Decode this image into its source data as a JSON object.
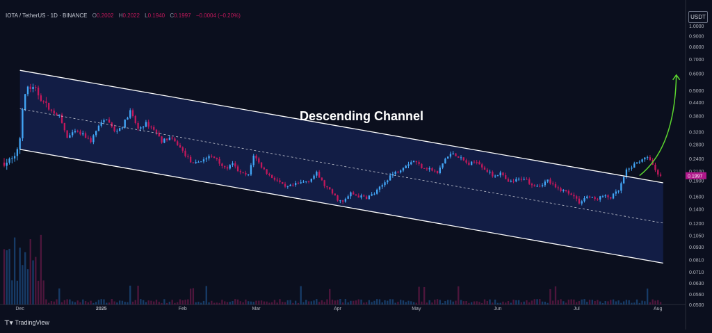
{
  "header": {
    "symbol": "IOTA / TetherUS · 1D · BINANCE",
    "open_label": "O",
    "open": "0.2002",
    "high_label": "H",
    "high": "0.2022",
    "low_label": "L",
    "low": "0.1940",
    "close_label": "C",
    "close": "0.1997",
    "change": "−0.0004 (−0.20%)"
  },
  "currency_button": "USDT",
  "footer": {
    "logo": "TradingView"
  },
  "colors": {
    "background": "#0b0f1e",
    "up": "#42a5f5",
    "down": "#c2185b",
    "channel": "#ffffff",
    "arrow": "#5bd62f",
    "price_tag": "#b0178a"
  },
  "chart_data": {
    "type": "candlestick",
    "annotation": "Descending Channel",
    "scale": "log",
    "y_ticks": [
      0.05,
      0.056,
      0.063,
      0.071,
      0.081,
      0.093,
      0.105,
      0.12,
      0.14,
      0.16,
      0.19,
      0.21,
      0.24,
      0.28,
      0.32,
      0.38,
      0.44,
      0.5,
      0.6,
      0.7,
      0.8,
      0.9,
      1.0
    ],
    "y_tick_labels": [
      "0.0500",
      "0.0560",
      "0.0630",
      "0.0710",
      "0.0810",
      "0.0930",
      "0.1050",
      "0.1200",
      "0.1400",
      "0.1600",
      "0.1900",
      "0.2100",
      "0.2400",
      "0.2800",
      "0.3200",
      "0.3800",
      "0.4400",
      "0.5000",
      "0.6000",
      "0.7000",
      "0.8000",
      "0.9000",
      "1.0000"
    ],
    "ylim": [
      0.05,
      1.04
    ],
    "x_ticks": [
      "Dec",
      "2025",
      "Feb",
      "Mar",
      "Apr",
      "May",
      "Jun",
      "Jul",
      "Aug"
    ],
    "x_tick_days": [
      0,
      31,
      62,
      90,
      121,
      151,
      182,
      212,
      243
    ],
    "x_range_days": [
      -6,
      253
    ],
    "last_price": 0.1997,
    "last_price_label": "0.1997",
    "channel": {
      "upper": [
        [
          0,
          0.62
        ],
        [
          245,
          0.185
        ]
      ],
      "middle": [
        [
          0,
          0.41
        ],
        [
          245,
          0.12
        ]
      ],
      "lower": [
        [
          0,
          0.265
        ],
        [
          245,
          0.078
        ]
      ]
    },
    "projection_arrow": [
      [
        236,
        0.2
      ],
      [
        250,
        0.59
      ]
    ],
    "anchors": [
      [
        -6,
        0.23
      ],
      [
        -2,
        0.24
      ],
      [
        0,
        0.3
      ],
      [
        1,
        0.42
      ],
      [
        3,
        0.52
      ],
      [
        6,
        0.5
      ],
      [
        9,
        0.44
      ],
      [
        12,
        0.4
      ],
      [
        15,
        0.38
      ],
      [
        18,
        0.3
      ],
      [
        21,
        0.32
      ],
      [
        24,
        0.31
      ],
      [
        27,
        0.29
      ],
      [
        30,
        0.34
      ],
      [
        33,
        0.37
      ],
      [
        36,
        0.32
      ],
      [
        39,
        0.34
      ],
      [
        42,
        0.4
      ],
      [
        45,
        0.33
      ],
      [
        48,
        0.35
      ],
      [
        51,
        0.33
      ],
      [
        54,
        0.29
      ],
      [
        57,
        0.3
      ],
      [
        60,
        0.28
      ],
      [
        63,
        0.25
      ],
      [
        66,
        0.225
      ],
      [
        69,
        0.235
      ],
      [
        72,
        0.245
      ],
      [
        75,
        0.24
      ],
      [
        78,
        0.215
      ],
      [
        81,
        0.225
      ],
      [
        84,
        0.205
      ],
      [
        87,
        0.2
      ],
      [
        89,
        0.25
      ],
      [
        92,
        0.22
      ],
      [
        95,
        0.2
      ],
      [
        98,
        0.19
      ],
      [
        101,
        0.175
      ],
      [
        104,
        0.18
      ],
      [
        107,
        0.185
      ],
      [
        110,
        0.19
      ],
      [
        113,
        0.205
      ],
      [
        116,
        0.18
      ],
      [
        119,
        0.165
      ],
      [
        121,
        0.155
      ],
      [
        123,
        0.15
      ],
      [
        126,
        0.165
      ],
      [
        129,
        0.16
      ],
      [
        132,
        0.158
      ],
      [
        135,
        0.165
      ],
      [
        138,
        0.18
      ],
      [
        141,
        0.2
      ],
      [
        144,
        0.21
      ],
      [
        147,
        0.225
      ],
      [
        150,
        0.235
      ],
      [
        153,
        0.22
      ],
      [
        156,
        0.215
      ],
      [
        159,
        0.205
      ],
      [
        162,
        0.24
      ],
      [
        165,
        0.255
      ],
      [
        168,
        0.24
      ],
      [
        171,
        0.225
      ],
      [
        174,
        0.235
      ],
      [
        177,
        0.215
      ],
      [
        180,
        0.2
      ],
      [
        183,
        0.205
      ],
      [
        186,
        0.185
      ],
      [
        189,
        0.19
      ],
      [
        192,
        0.195
      ],
      [
        195,
        0.182
      ],
      [
        198,
        0.18
      ],
      [
        201,
        0.19
      ],
      [
        204,
        0.175
      ],
      [
        207,
        0.17
      ],
      [
        210,
        0.165
      ],
      [
        213,
        0.15
      ],
      [
        216,
        0.16
      ],
      [
        219,
        0.155
      ],
      [
        222,
        0.16
      ],
      [
        225,
        0.158
      ],
      [
        228,
        0.17
      ],
      [
        231,
        0.21
      ],
      [
        234,
        0.225
      ],
      [
        237,
        0.24
      ],
      [
        240,
        0.24
      ],
      [
        242,
        0.21
      ],
      [
        244,
        0.1997
      ]
    ]
  }
}
